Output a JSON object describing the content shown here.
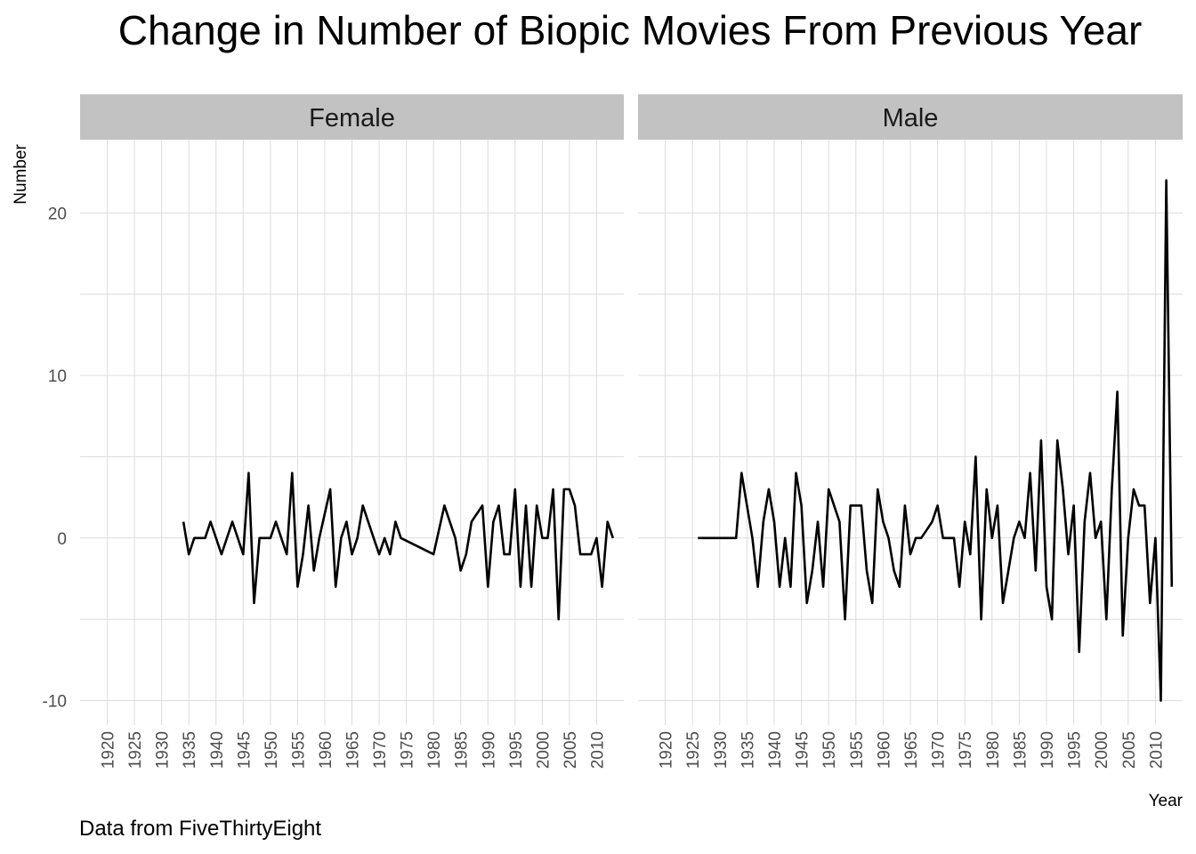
{
  "chart_data": {
    "type": "line",
    "title": "Change in Number of Biopic Movies From Previous Year",
    "xlabel": "Year",
    "ylabel": "Number",
    "caption": "Data from FiveThirtyEight",
    "ylim": [
      -11.5,
      24.5
    ],
    "xlim": [
      1915,
      2015
    ],
    "y_ticks": [
      -10,
      0,
      10,
      20
    ],
    "x_ticks": [
      1920,
      1925,
      1930,
      1935,
      1940,
      1945,
      1950,
      1955,
      1960,
      1965,
      1970,
      1975,
      1980,
      1985,
      1990,
      1995,
      2000,
      2005,
      2010
    ],
    "grid": true,
    "legend": "none",
    "line_color": "#000000",
    "strip_color": "#c2c2c2",
    "panels": [
      {
        "name": "Female",
        "x": [
          1934,
          1935,
          1936,
          1938,
          1939,
          1941,
          1943,
          1945,
          1946,
          1947,
          1948,
          1950,
          1951,
          1953,
          1954,
          1955,
          1956,
          1957,
          1958,
          1959,
          1961,
          1962,
          1963,
          1964,
          1965,
          1966,
          1967,
          1969,
          1970,
          1971,
          1972,
          1973,
          1974,
          1980,
          1982,
          1984,
          1985,
          1986,
          1987,
          1989,
          1990,
          1991,
          1992,
          1993,
          1994,
          1995,
          1996,
          1997,
          1998,
          1999,
          2000,
          2001,
          2002,
          2003,
          2004,
          2005,
          2006,
          2007,
          2008,
          2009,
          2010,
          2011,
          2012,
          2013
        ],
        "values": [
          1,
          -1,
          0,
          0,
          1,
          -1,
          1,
          -1,
          4,
          -4,
          0,
          0,
          1,
          -1,
          4,
          -3,
          -1,
          2,
          -2,
          0,
          3,
          -3,
          0,
          1,
          -1,
          0,
          2,
          0,
          -1,
          0,
          -1,
          1,
          0,
          -1,
          2,
          0,
          -2,
          -1,
          1,
          2,
          -3,
          1,
          2,
          -1,
          -1,
          3,
          -3,
          2,
          -3,
          2,
          0,
          0,
          3,
          -5,
          3,
          3,
          2,
          -1,
          -1,
          -1,
          0,
          -3,
          1,
          0
        ]
      },
      {
        "name": "Male",
        "x": [
          1926,
          1927,
          1928,
          1929,
          1930,
          1931,
          1932,
          1933,
          1934,
          1935,
          1936,
          1937,
          1938,
          1939,
          1940,
          1941,
          1942,
          1943,
          1944,
          1945,
          1946,
          1947,
          1948,
          1949,
          1950,
          1951,
          1952,
          1953,
          1954,
          1955,
          1956,
          1957,
          1958,
          1959,
          1960,
          1961,
          1962,
          1963,
          1964,
          1965,
          1966,
          1967,
          1968,
          1969,
          1970,
          1971,
          1972,
          1973,
          1974,
          1975,
          1976,
          1977,
          1978,
          1979,
          1980,
          1981,
          1982,
          1983,
          1984,
          1985,
          1986,
          1987,
          1988,
          1989,
          1990,
          1991,
          1992,
          1993,
          1994,
          1995,
          1996,
          1997,
          1998,
          1999,
          2000,
          2001,
          2002,
          2003,
          2004,
          2005,
          2006,
          2007,
          2008,
          2009,
          2010,
          2011,
          2012,
          2013
        ],
        "values": [
          0,
          0,
          0,
          0,
          0,
          0,
          0,
          0,
          4,
          2,
          0,
          -3,
          1,
          3,
          1,
          -3,
          0,
          -3,
          4,
          2,
          -4,
          -2,
          1,
          -3,
          3,
          2,
          1,
          -5,
          2,
          2,
          2,
          -2,
          -4,
          3,
          1,
          0,
          -2,
          -3,
          2,
          -1,
          0,
          0,
          0.5,
          1,
          2,
          0,
          0,
          0,
          -3,
          1,
          -1,
          5,
          -5,
          3,
          0,
          2,
          -4,
          -2,
          0,
          1,
          0,
          4,
          -2,
          6,
          -3,
          -5,
          6,
          3,
          -1,
          2,
          -7,
          1,
          4,
          0,
          1,
          -5,
          3,
          9,
          -6,
          0,
          3,
          2,
          2,
          -4,
          0,
          -10,
          22,
          -3
        ]
      }
    ]
  }
}
